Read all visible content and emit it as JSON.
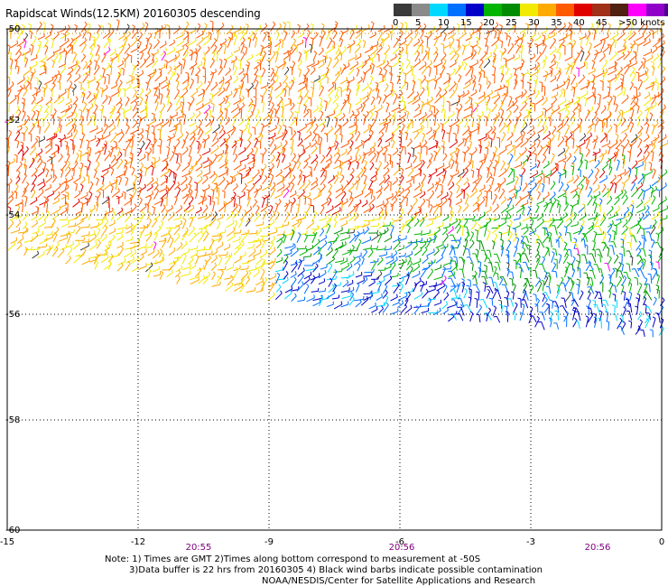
{
  "title": "Rapidscat Winds(12.5KM) 20160305 descending",
  "colorbar": {
    "colors": [
      "#3a3a3a",
      "#8a8a8a",
      "#00d8ff",
      "#0070ff",
      "#0000c8",
      "#00b400",
      "#008c00",
      "#f2ea00",
      "#ffaa00",
      "#ff5a00",
      "#e00000",
      "#a03018",
      "#502010",
      "#ff00ff",
      "#9000c8",
      "#500090"
    ],
    "labels": [
      "0",
      "5",
      "10",
      "15",
      "20",
      "25",
      "30",
      "35",
      "40",
      "45",
      ">50 knots"
    ]
  },
  "axes": {
    "y_labels": [
      "-50",
      "-52",
      "-54",
      "-56",
      "-58",
      "-60"
    ],
    "x_labels": [
      "-15",
      "-12",
      "-9",
      "-6",
      "-3",
      "0"
    ],
    "time_labels": [
      "20:55",
      "20:56",
      "20:56"
    ],
    "time_color": "#800080"
  },
  "notes": [
    "Note: 1) Times are GMT 2)Times along bottom correspond to measurement at -50S",
    "3)Data buffer is 22 hrs from 20160305 4) Black wind barbs indicate possible contamination",
    "NOAA/NESDIS/Center for Satellite Applications and Research"
  ]
}
